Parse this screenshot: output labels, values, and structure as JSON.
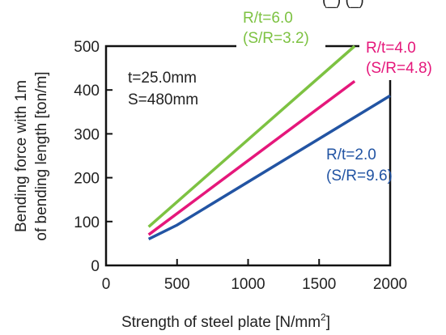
{
  "chart_data": {
    "type": "line",
    "title": "",
    "xlabel_main": "Strength of steel plate [N/mm",
    "xlabel_sup": "2",
    "xlabel_end": "]",
    "ylabel": [
      "Bending force with 1m",
      "of bending length [ton/m]"
    ],
    "xlim": [
      0,
      2000
    ],
    "ylim": [
      0,
      500
    ],
    "xticks": [
      "0",
      "500",
      "1000",
      "1500",
      "2000"
    ],
    "yticks": [
      "0",
      "100",
      "200",
      "300",
      "400",
      "500"
    ],
    "grid": false,
    "annotation": [
      "t=25.0mm",
      "S=480mm"
    ],
    "series": [
      {
        "name": "R/t=6.0",
        "sub": "(S/R=3.2)",
        "color": "#7dc242",
        "x": [
          300,
          1750
        ],
        "y": [
          88,
          500
        ]
      },
      {
        "name": "R/t=4.0",
        "sub": "(S/R=4.8)",
        "color": "#e5177b",
        "x": [
          300,
          1750
        ],
        "y": [
          70,
          420
        ]
      },
      {
        "name": "R/t=2.0",
        "sub": "(S/R=9.6)",
        "color": "#2254a3",
        "x": [
          300,
          500,
          2000
        ],
        "y": [
          60,
          92,
          387
        ]
      }
    ],
    "partial_top_text": "(_) (_)"
  }
}
